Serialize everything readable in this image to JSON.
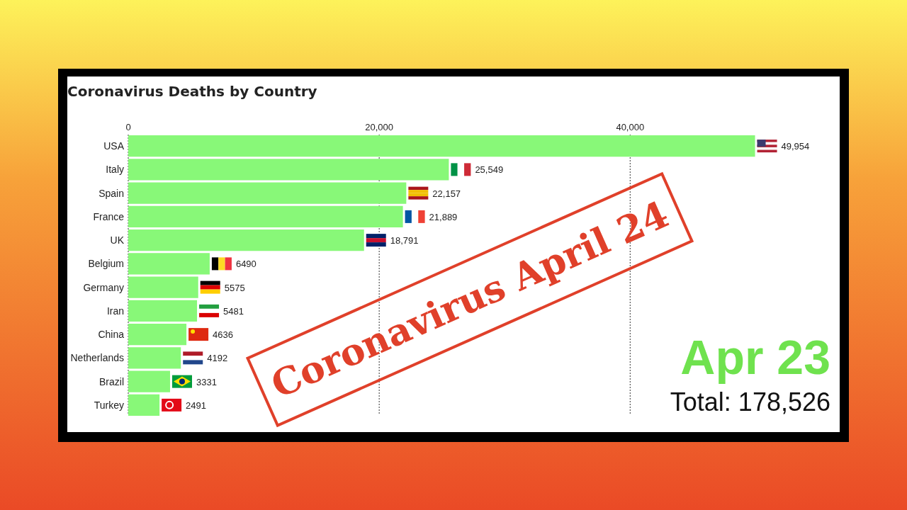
{
  "chart_data": {
    "type": "bar",
    "orientation": "horizontal",
    "title": "Coronavirus Deaths by Country",
    "categories": [
      "USA",
      "Italy",
      "Spain",
      "France",
      "UK",
      "Belgium",
      "Germany",
      "Iran",
      "China",
      "Netherlands",
      "Brazil",
      "Turkey"
    ],
    "values": [
      49954,
      25549,
      22157,
      21889,
      18791,
      6490,
      5575,
      5481,
      4636,
      4192,
      3331,
      2491
    ],
    "value_labels": [
      "49,954",
      "25,549",
      "22,157",
      "21,889",
      "18,791",
      "6490",
      "5575",
      "5481",
      "4636",
      "4192",
      "3331",
      "2491"
    ],
    "color": "#88f878",
    "xlim": [
      0,
      56700
    ],
    "xticks": [
      0,
      {
        "value": 20000,
        "label": "20,000"
      },
      {
        "value": 40000,
        "label": "40,000"
      }
    ],
    "grid": "x",
    "annotations": [
      "Apr 23",
      "Total: 178,526",
      "Coronavirus April 24"
    ]
  }
}
